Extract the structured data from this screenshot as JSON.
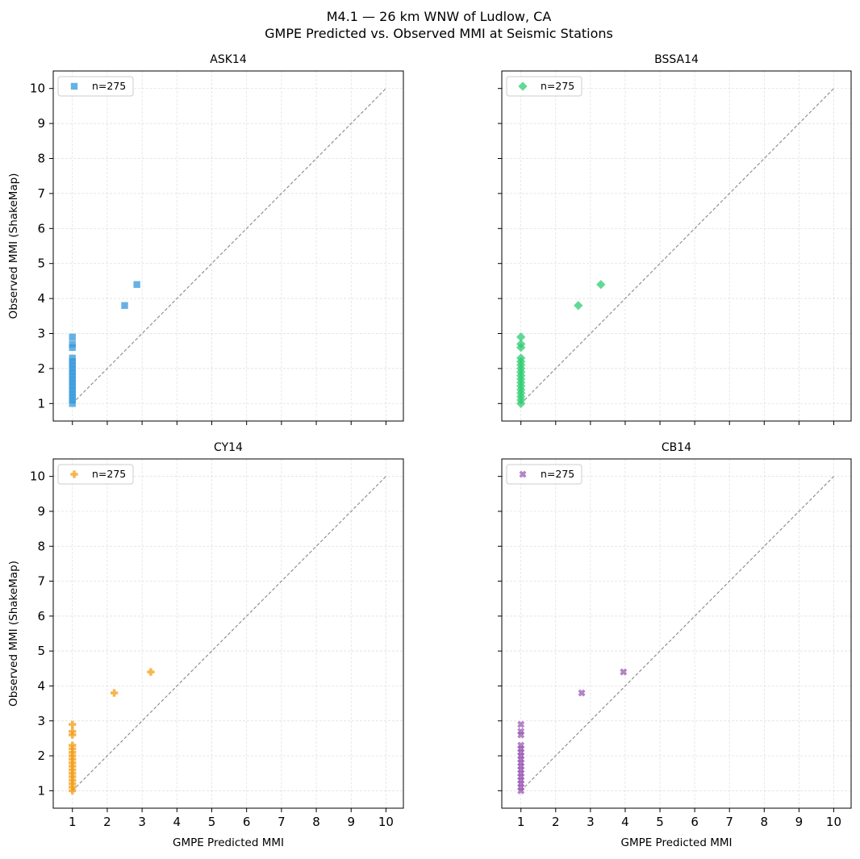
{
  "figure": {
    "title_line1": "M4.1 — 26 km WNW of Ludlow, CA",
    "title_line2": "GMPE Predicted vs. Observed MMI at Seismic Stations"
  },
  "chart_data": [
    {
      "type": "scatter",
      "title": "ASK14",
      "xlabel": "",
      "ylabel": "Observed MMI (ShakeMap)",
      "xlim": [
        0.45,
        10.5
      ],
      "ylim": [
        0.5,
        10.5
      ],
      "xticks": [
        "1",
        "2",
        "3",
        "4",
        "5",
        "6",
        "7",
        "8",
        "9",
        "10"
      ],
      "yticks": [
        "1",
        "2",
        "3",
        "4",
        "5",
        "6",
        "7",
        "8",
        "9",
        "10"
      ],
      "show_xtick_labels": false,
      "show_ytick_labels": true,
      "grid": true,
      "legend": {
        "placement": "top-left",
        "label": "n=275"
      },
      "marker": "square",
      "color": "#3498db",
      "reference_line": {
        "x": [
          1,
          10
        ],
        "y": [
          1,
          10
        ],
        "style": "dashed",
        "color": "#888888"
      },
      "points": [
        [
          1,
          1.0
        ],
        [
          1,
          1.1
        ],
        [
          1,
          1.2
        ],
        [
          1,
          1.3
        ],
        [
          1,
          1.4
        ],
        [
          1,
          1.5
        ],
        [
          1,
          1.6
        ],
        [
          1,
          1.7
        ],
        [
          1,
          1.8
        ],
        [
          1,
          1.9
        ],
        [
          1,
          2.0
        ],
        [
          1,
          2.1
        ],
        [
          1,
          2.2
        ],
        [
          1,
          2.3
        ],
        [
          1,
          2.6
        ],
        [
          1,
          2.7
        ],
        [
          1,
          2.9
        ],
        [
          2.5,
          3.8
        ],
        [
          2.85,
          4.4
        ]
      ]
    },
    {
      "type": "scatter",
      "title": "BSSA14",
      "xlabel": "",
      "ylabel": "",
      "xlim": [
        0.45,
        10.5
      ],
      "ylim": [
        0.5,
        10.5
      ],
      "xticks": [
        "1",
        "2",
        "3",
        "4",
        "5",
        "6",
        "7",
        "8",
        "9",
        "10"
      ],
      "yticks": [
        "1",
        "2",
        "3",
        "4",
        "5",
        "6",
        "7",
        "8",
        "9",
        "10"
      ],
      "show_xtick_labels": false,
      "show_ytick_labels": false,
      "grid": true,
      "legend": {
        "placement": "top-left",
        "label": "n=275"
      },
      "marker": "diamond",
      "color": "#2ecc71",
      "reference_line": {
        "x": [
          1,
          10
        ],
        "y": [
          1,
          10
        ],
        "style": "dashed",
        "color": "#888888"
      },
      "points": [
        [
          1,
          1.0
        ],
        [
          1,
          1.1
        ],
        [
          1,
          1.2
        ],
        [
          1,
          1.3
        ],
        [
          1,
          1.4
        ],
        [
          1,
          1.5
        ],
        [
          1,
          1.6
        ],
        [
          1,
          1.7
        ],
        [
          1,
          1.8
        ],
        [
          1,
          1.9
        ],
        [
          1,
          2.0
        ],
        [
          1,
          2.1
        ],
        [
          1,
          2.2
        ],
        [
          1,
          2.3
        ],
        [
          1,
          2.6
        ],
        [
          1,
          2.7
        ],
        [
          1,
          2.9
        ],
        [
          2.65,
          3.8
        ],
        [
          3.3,
          4.4
        ]
      ]
    },
    {
      "type": "scatter",
      "title": "CY14",
      "xlabel": "GMPE Predicted MMI",
      "ylabel": "Observed MMI (ShakeMap)",
      "xlim": [
        0.45,
        10.5
      ],
      "ylim": [
        0.5,
        10.5
      ],
      "xticks": [
        "1",
        "2",
        "3",
        "4",
        "5",
        "6",
        "7",
        "8",
        "9",
        "10"
      ],
      "yticks": [
        "1",
        "2",
        "3",
        "4",
        "5",
        "6",
        "7",
        "8",
        "9",
        "10"
      ],
      "show_xtick_labels": true,
      "show_ytick_labels": true,
      "grid": true,
      "legend": {
        "placement": "top-left",
        "label": "n=275"
      },
      "marker": "plus",
      "color": "#f39c12",
      "reference_line": {
        "x": [
          1,
          10
        ],
        "y": [
          1,
          10
        ],
        "style": "dashed",
        "color": "#888888"
      },
      "points": [
        [
          1,
          1.0
        ],
        [
          1,
          1.1
        ],
        [
          1,
          1.2
        ],
        [
          1,
          1.3
        ],
        [
          1,
          1.4
        ],
        [
          1,
          1.5
        ],
        [
          1,
          1.6
        ],
        [
          1,
          1.7
        ],
        [
          1,
          1.8
        ],
        [
          1,
          1.9
        ],
        [
          1,
          2.0
        ],
        [
          1,
          2.1
        ],
        [
          1,
          2.2
        ],
        [
          1,
          2.3
        ],
        [
          1,
          2.6
        ],
        [
          1,
          2.7
        ],
        [
          1,
          2.9
        ],
        [
          2.2,
          3.8
        ],
        [
          3.25,
          4.4
        ]
      ]
    },
    {
      "type": "scatter",
      "title": "CB14",
      "xlabel": "GMPE Predicted MMI",
      "ylabel": "",
      "xlim": [
        0.45,
        10.5
      ],
      "ylim": [
        0.5,
        10.5
      ],
      "xticks": [
        "1",
        "2",
        "3",
        "4",
        "5",
        "6",
        "7",
        "8",
        "9",
        "10"
      ],
      "yticks": [
        "1",
        "2",
        "3",
        "4",
        "5",
        "6",
        "7",
        "8",
        "9",
        "10"
      ],
      "show_xtick_labels": true,
      "show_ytick_labels": false,
      "grid": true,
      "legend": {
        "placement": "top-left",
        "label": "n=275"
      },
      "marker": "x",
      "color": "#9b59b6",
      "reference_line": {
        "x": [
          1,
          10
        ],
        "y": [
          1,
          10
        ],
        "style": "dashed",
        "color": "#888888"
      },
      "points": [
        [
          1,
          1.0
        ],
        [
          1,
          1.1
        ],
        [
          1,
          1.2
        ],
        [
          1,
          1.3
        ],
        [
          1,
          1.4
        ],
        [
          1,
          1.5
        ],
        [
          1,
          1.6
        ],
        [
          1,
          1.7
        ],
        [
          1,
          1.8
        ],
        [
          1,
          1.9
        ],
        [
          1,
          2.0
        ],
        [
          1,
          2.1
        ],
        [
          1,
          2.2
        ],
        [
          1,
          2.3
        ],
        [
          1,
          2.6
        ],
        [
          1,
          2.7
        ],
        [
          1,
          2.9
        ],
        [
          2.75,
          3.8
        ],
        [
          3.95,
          4.4
        ]
      ]
    }
  ]
}
